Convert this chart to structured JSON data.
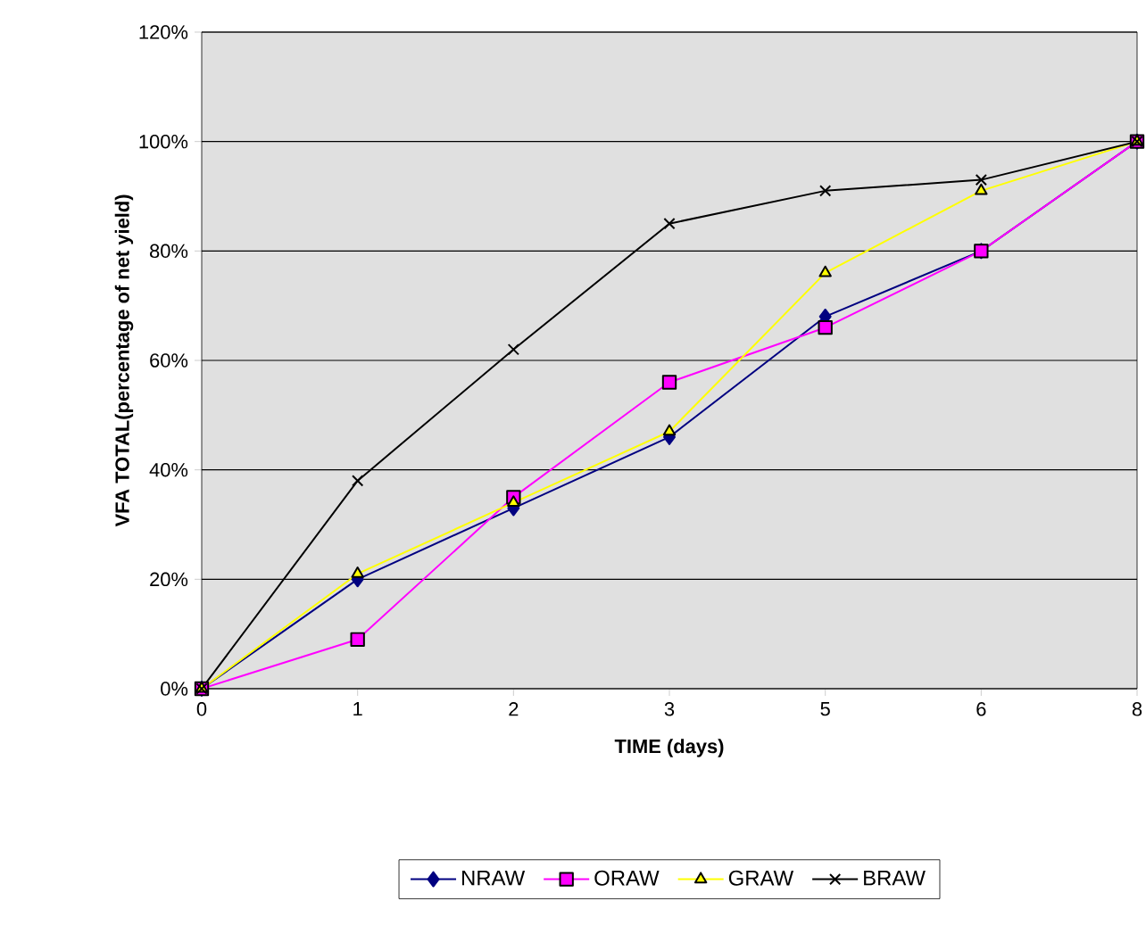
{
  "chart_data": {
    "type": "line",
    "xlabel": "TIME (days)",
    "ylabel": "VFA TOTAL(percentage of net yield)",
    "categories": [
      "0",
      "1",
      "2",
      "3",
      "5",
      "6",
      "8"
    ],
    "series": [
      {
        "name": "NRAW",
        "color": "#000080",
        "marker": "diamond",
        "values": [
          0,
          20,
          33,
          46,
          68,
          80,
          100
        ]
      },
      {
        "name": "ORAW",
        "color": "#ff00ff",
        "marker": "square",
        "values": [
          0,
          9,
          35,
          56,
          66,
          80,
          100
        ]
      },
      {
        "name": "GRAW",
        "color": "#ffff00",
        "marker": "triangle",
        "values": [
          0,
          21,
          34,
          47,
          76,
          91,
          100
        ]
      },
      {
        "name": "BRAW",
        "color": "#000000",
        "marker": "cross",
        "values": [
          0,
          38,
          62,
          85,
          91,
          93,
          100
        ]
      }
    ],
    "ylim": [
      0,
      120
    ],
    "yticks": [
      {
        "value": 0,
        "label": "0%"
      },
      {
        "value": 20,
        "label": "20%"
      },
      {
        "value": 40,
        "label": "40%"
      },
      {
        "value": 60,
        "label": "60%"
      },
      {
        "value": 80,
        "label": "80%"
      },
      {
        "value": 100,
        "label": "100%"
      },
      {
        "value": 120,
        "label": "120%"
      }
    ],
    "grid": "y",
    "legend": "bottom",
    "line_style": "solid"
  }
}
